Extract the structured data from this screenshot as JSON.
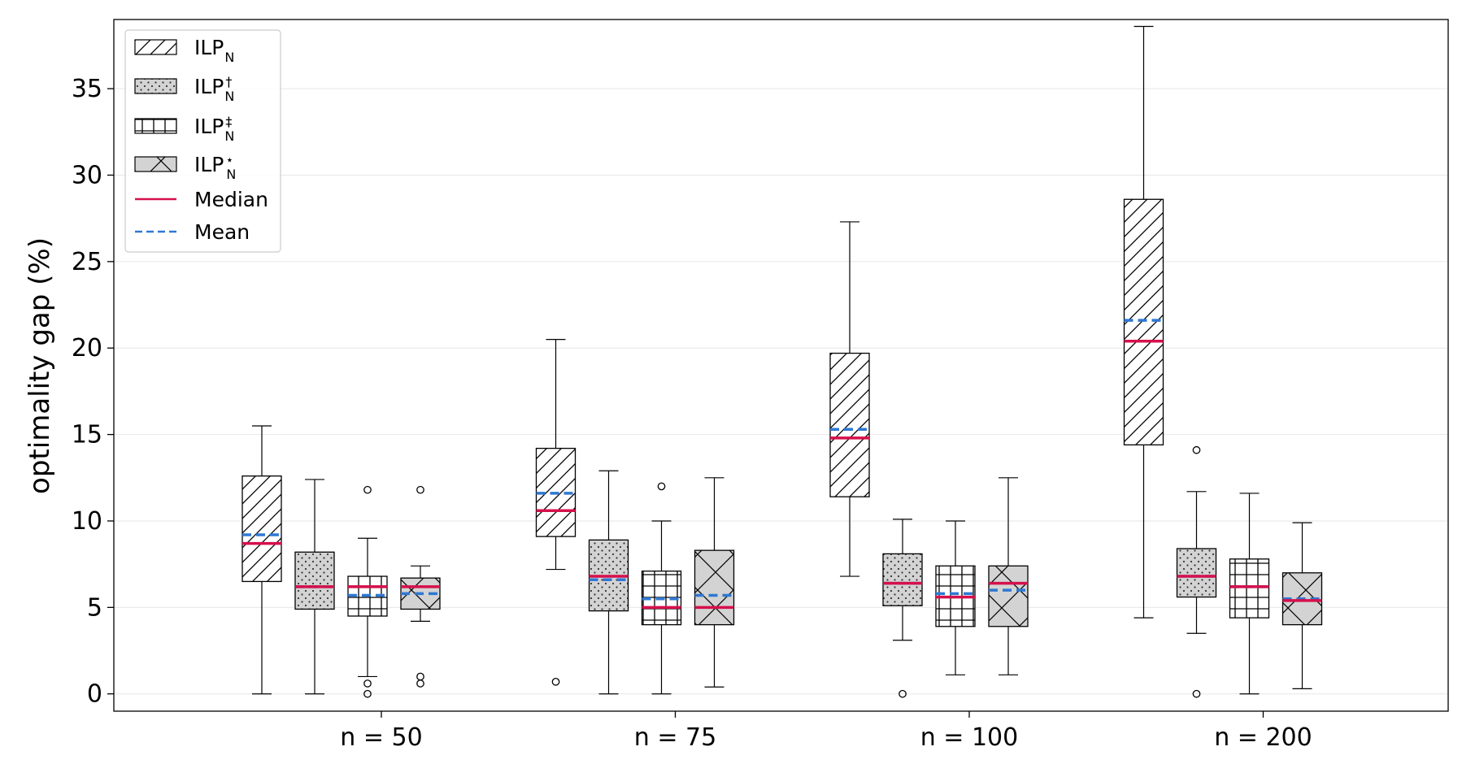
{
  "chart_data": {
    "type": "box",
    "title": "",
    "xlabel": "",
    "ylabel": "optimality gap (%)",
    "ylim": [
      -1,
      39
    ],
    "yticks": [
      0,
      5,
      10,
      15,
      20,
      25,
      30,
      35
    ],
    "grid": "horizontal",
    "legend_position": "top-left",
    "categories": [
      "n = 50",
      "n = 75",
      "n = 100",
      "n = 200"
    ],
    "series": [
      {
        "name": "ILP",
        "sub": "N",
        "sup": "",
        "pattern": "diagonal",
        "fill": "#ffffff",
        "boxes": [
          {
            "whislo": 0,
            "q1": 6.5,
            "median": 8.7,
            "mean": 9.2,
            "q3": 12.6,
            "whishi": 15.5,
            "fliers": []
          },
          {
            "whislo": 7.2,
            "q1": 9.1,
            "median": 10.6,
            "mean": 11.6,
            "q3": 14.2,
            "whishi": 20.5,
            "fliers": [
              0.7
            ]
          },
          {
            "whislo": 6.8,
            "q1": 11.4,
            "median": 14.8,
            "mean": 15.3,
            "q3": 19.7,
            "whishi": 27.3,
            "fliers": []
          },
          {
            "whislo": 4.4,
            "q1": 14.4,
            "median": 20.4,
            "mean": 21.6,
            "q3": 28.6,
            "whishi": 38.6,
            "fliers": []
          }
        ]
      },
      {
        "name": "ILP",
        "sub": "N",
        "sup": "†",
        "pattern": "dots",
        "fill": "#d3d3d3",
        "boxes": [
          {
            "whislo": 0,
            "q1": 4.9,
            "median": 6.2,
            "mean": 6.2,
            "q3": 8.2,
            "whishi": 12.4,
            "fliers": []
          },
          {
            "whislo": 0,
            "q1": 4.8,
            "median": 6.8,
            "mean": 6.6,
            "q3": 8.9,
            "whishi": 12.9,
            "fliers": []
          },
          {
            "whislo": 3.1,
            "q1": 5.1,
            "median": 6.4,
            "mean": 6.4,
            "q3": 8.1,
            "whishi": 10.1,
            "fliers": [
              0
            ]
          },
          {
            "whislo": 3.5,
            "q1": 5.6,
            "median": 6.8,
            "mean": 6.8,
            "q3": 8.4,
            "whishi": 11.7,
            "fliers": [
              14.1,
              0
            ]
          }
        ]
      },
      {
        "name": "ILP",
        "sub": "N",
        "sup": "‡",
        "pattern": "grid",
        "fill": "#ffffff",
        "boxes": [
          {
            "whislo": 1.0,
            "q1": 4.5,
            "median": 6.2,
            "mean": 5.7,
            "q3": 6.8,
            "whishi": 9.0,
            "fliers": [
              11.8,
              0.6,
              0
            ]
          },
          {
            "whislo": 0,
            "q1": 4.0,
            "median": 5.0,
            "mean": 5.5,
            "q3": 7.1,
            "whishi": 10.0,
            "fliers": [
              12.0
            ]
          },
          {
            "whislo": 1.1,
            "q1": 3.9,
            "median": 5.6,
            "mean": 5.8,
            "q3": 7.4,
            "whishi": 10.0,
            "fliers": []
          },
          {
            "whislo": 0,
            "q1": 4.4,
            "median": 6.2,
            "mean": 6.2,
            "q3": 7.8,
            "whishi": 11.6,
            "fliers": []
          }
        ]
      },
      {
        "name": "ILP",
        "sub": "N",
        "sup": "⋆",
        "pattern": "cross",
        "fill": "#d3d3d3",
        "boxes": [
          {
            "whislo": 4.2,
            "q1": 4.9,
            "median": 6.2,
            "mean": 5.8,
            "q3": 6.7,
            "whishi": 7.4,
            "fliers": [
              11.8,
              1.0,
              0.6
            ]
          },
          {
            "whislo": 0.4,
            "q1": 4.0,
            "median": 5.0,
            "mean": 5.7,
            "q3": 8.3,
            "whishi": 12.5,
            "fliers": []
          },
          {
            "whislo": 1.1,
            "q1": 3.9,
            "median": 6.4,
            "mean": 6.0,
            "q3": 7.4,
            "whishi": 12.5,
            "fliers": []
          },
          {
            "whislo": 0.3,
            "q1": 4.0,
            "median": 5.4,
            "mean": 5.5,
            "q3": 7.0,
            "whishi": 9.9,
            "fliers": []
          }
        ]
      }
    ],
    "legend": {
      "median_label": "Median",
      "mean_label": "Mean"
    },
    "colors": {
      "median": "#d6104c",
      "mean": "#2f78d2",
      "grid": "#e6e6e6",
      "box_gray": "#d3d3d3"
    }
  }
}
